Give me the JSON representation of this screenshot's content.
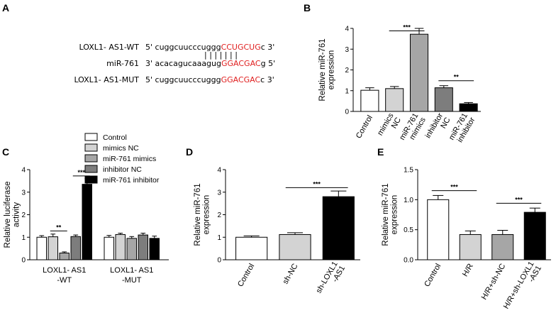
{
  "panel_labels": {
    "a": "A",
    "b": "B",
    "c": "C",
    "d": "D",
    "e": "E"
  },
  "panel_a": {
    "rows": [
      {
        "label": "LOXL1- AS1-WT",
        "prefix": "5' cuggcuucccuggg",
        "highlight": "CCUGCUG",
        "suffix": "c 3'"
      },
      {
        "label": "miR-761",
        "prefix": "3' acacagucaaagug",
        "highlight": "GGACGAC",
        "suffix": "g 5'"
      },
      {
        "label": "LOXL1- AS1-MUT",
        "prefix": "5' cuggcuucccuggg",
        "highlight": "GGACGAC",
        "suffix": "c 3'"
      }
    ],
    "pairing": "| | | | | | |"
  },
  "chart_data": [
    {
      "panel": "B",
      "type": "bar",
      "categories": [
        "Control",
        "mimics NC",
        "miR-761 mimics",
        "inhibitor NC",
        "miR-761 inhibitor"
      ],
      "values": [
        1.02,
        1.1,
        3.72,
        1.14,
        0.37
      ],
      "errors": [
        0.12,
        0.1,
        0.28,
        0.1,
        0.06
      ],
      "colors": [
        "#ffffff",
        "#d3d3d3",
        "#a6a6a6",
        "#7d7d7d",
        "#000000"
      ],
      "ylabel": "Relative miR-761 expression",
      "ylim": [
        0,
        4
      ],
      "yticks": [
        "0",
        "1",
        "2",
        "3",
        "4"
      ],
      "significance": [
        {
          "from": 1,
          "to": 2,
          "label": "***",
          "y": 3.88
        },
        {
          "from": 3,
          "to": 4,
          "label": "**",
          "y": 1.48
        }
      ]
    },
    {
      "panel": "C",
      "type": "bar",
      "groups": [
        "LOXL1- AS1 -WT",
        "LOXL1- AS1 -MUT"
      ],
      "series": [
        {
          "name": "Control",
          "color": "#ffffff",
          "values": [
            1.0,
            1.0
          ],
          "errors": [
            0.07,
            0.08
          ]
        },
        {
          "name": "mimics NC",
          "color": "#d3d3d3",
          "values": [
            1.02,
            1.12
          ],
          "errors": [
            0.12,
            0.06
          ]
        },
        {
          "name": "miR-761 mimics",
          "color": "#a6a6a6",
          "values": [
            0.3,
            0.95
          ],
          "errors": [
            0.05,
            0.08
          ]
        },
        {
          "name": "inhibitor NC",
          "color": "#7d7d7d",
          "values": [
            1.03,
            1.1
          ],
          "errors": [
            0.07,
            0.08
          ]
        },
        {
          "name": "miR-761 inhibitor",
          "color": "#000000",
          "values": [
            3.35,
            0.95
          ],
          "errors": [
            0.25,
            0.1
          ]
        }
      ],
      "ylabel": "Relative luciferase activity",
      "ylim": [
        0,
        4
      ],
      "yticks": [
        "0",
        "1",
        "2",
        "3",
        "4"
      ],
      "legend": "top",
      "significance": [
        {
          "group": 0,
          "from": 1,
          "to": 2,
          "label": "**",
          "y": 1.28
        },
        {
          "group": 0,
          "from": 3,
          "to": 4,
          "label": "***",
          "y": 3.72
        }
      ]
    },
    {
      "panel": "D",
      "type": "bar",
      "categories": [
        "Control",
        "sh-NC",
        "sh-LOXL1 -AS1"
      ],
      "values": [
        1.0,
        1.12,
        2.8
      ],
      "errors": [
        0.06,
        0.08,
        0.25
      ],
      "colors": [
        "#ffffff",
        "#d3d3d3",
        "#000000"
      ],
      "ylabel": "Relative miR-761 expression",
      "ylim": [
        0,
        4
      ],
      "yticks": [
        "0",
        "1",
        "2",
        "3",
        "4"
      ],
      "significance": [
        {
          "from": 1,
          "to": 2,
          "label": "***",
          "y": 3.2
        }
      ]
    },
    {
      "panel": "E",
      "type": "bar",
      "categories": [
        "Control",
        "H/R",
        "H/R+sh-NC",
        "H/R+sh-LOXL1 -AS1"
      ],
      "values": [
        1.0,
        0.42,
        0.42,
        0.79
      ],
      "errors": [
        0.07,
        0.06,
        0.07,
        0.07
      ],
      "colors": [
        "#ffffff",
        "#d3d3d3",
        "#a6a6a6",
        "#000000"
      ],
      "ylabel": "Relative miR-761 expression",
      "ylim": [
        0,
        1.5
      ],
      "yticks": [
        "0.0",
        "0.5",
        "1.0",
        "1.5"
      ],
      "significance": [
        {
          "from": 0,
          "to": 1,
          "label": "***",
          "y": 1.15
        },
        {
          "from": 2,
          "to": 3,
          "label": "***",
          "y": 0.94
        }
      ]
    }
  ]
}
